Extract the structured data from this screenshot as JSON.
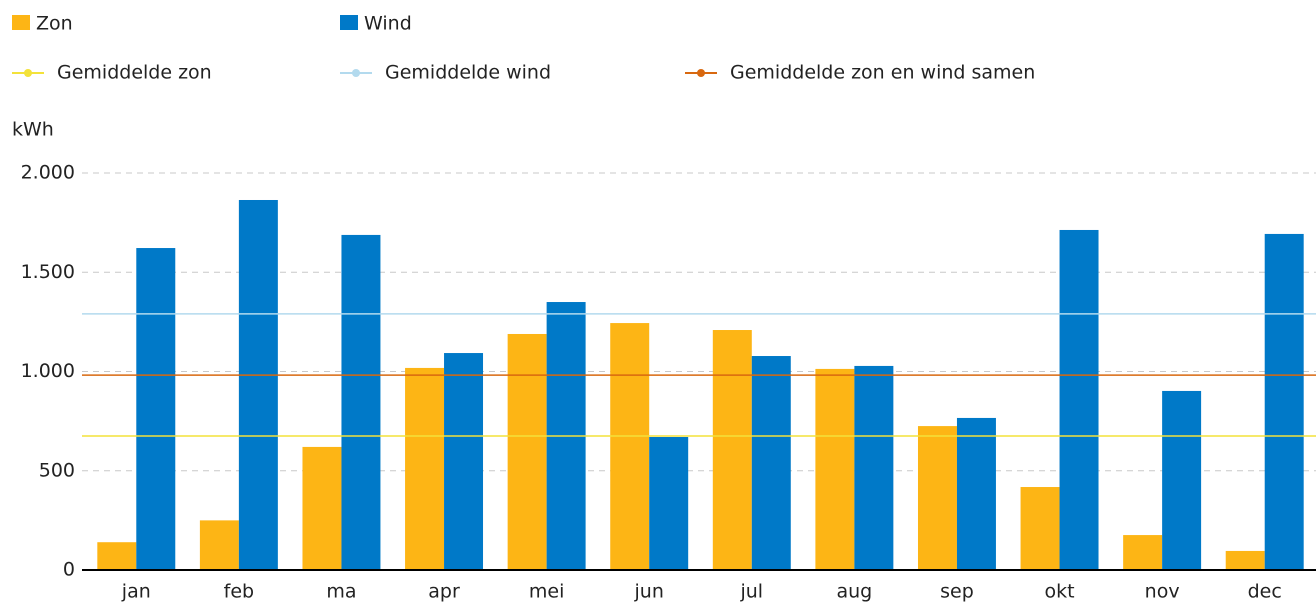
{
  "chart_data": {
    "type": "bar",
    "y_axis_label": "kWh",
    "categories": [
      "jan",
      "feb",
      "ma",
      "apr",
      "mei",
      "jun",
      "jul",
      "aug",
      "sep",
      "okt",
      "nov",
      "dec"
    ],
    "series": [
      {
        "name": "Zon",
        "color": "#fdb515",
        "values": [
          140,
          250,
          620,
          1018,
          1189,
          1244,
          1209,
          1013,
          725,
          418,
          176,
          96
        ]
      },
      {
        "name": "Wind",
        "color": "#0079c8",
        "values": [
          1622,
          1864,
          1688,
          1093,
          1350,
          670,
          1078,
          1028,
          766,
          1713,
          902,
          1693
        ]
      }
    ],
    "reference_lines": [
      {
        "name": "Gemiddelde zon",
        "color": "#f3e23a",
        "value": 675
      },
      {
        "name": "Gemiddelde wind",
        "color": "#b3daee",
        "value": 1290
      },
      {
        "name": "Gemiddelde zon en wind samen",
        "color": "#d8680f",
        "value": 982
      }
    ],
    "ylim": [
      0,
      2000
    ],
    "yticks": [
      0,
      500,
      {
        "value": 1000,
        "label": "1.000"
      },
      {
        "value": 1500,
        "label": "1.500"
      },
      {
        "value": 2000,
        "label": "2.000"
      }
    ],
    "grid": true
  }
}
